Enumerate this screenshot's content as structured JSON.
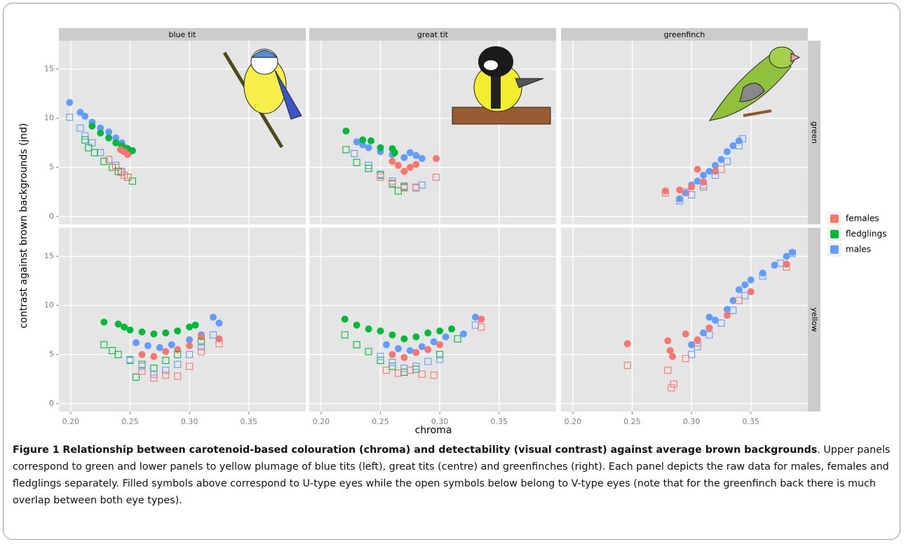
{
  "chart_data": {
    "type": "scatter",
    "xlabel": "chroma",
    "ylabel": "contrast against brown backgrounds (jnd)",
    "columns": [
      "blue tit",
      "great tit",
      "greenfinch"
    ],
    "rows": [
      "green",
      "yellow"
    ],
    "xlim": [
      0.19,
      0.398
    ],
    "xticks": [
      {
        "value": 0.2,
        "label": "0.20"
      },
      {
        "value": 0.25,
        "label": "0.25"
      },
      {
        "value": 0.3,
        "label": "0.30"
      },
      {
        "value": 0.35,
        "label": "0.35"
      }
    ],
    "ylim": [
      -0.8,
      17.9
    ],
    "yticks": [
      0,
      5,
      10,
      15
    ],
    "grid": true,
    "legend_position": "right",
    "legend": [
      {
        "name": "females",
        "color": "#f8766d"
      },
      {
        "name": "fledglings",
        "color": "#00ba38"
      },
      {
        "name": "males",
        "color": "#619cff"
      }
    ],
    "panels": [
      {
        "column": 0,
        "row": 0,
        "series": [
          {
            "group": 2,
            "filled": true,
            "x": [
              0.199,
              0.208,
              0.212,
              0.218,
              0.225,
              0.232,
              0.238,
              0.243,
              0.246,
              0.25
            ],
            "y": [
              11.6,
              10.6,
              10.2,
              9.6,
              9.0,
              8.6,
              8.0,
              7.5,
              7.0,
              6.6
            ]
          },
          {
            "group": 1,
            "filled": true,
            "x": [
              0.218,
              0.225,
              0.232,
              0.238,
              0.243,
              0.248,
              0.252
            ],
            "y": [
              9.2,
              8.5,
              8.0,
              7.5,
              7.2,
              6.9,
              6.7
            ]
          },
          {
            "group": 0,
            "filled": true,
            "x": [
              0.245,
              0.248,
              0.242
            ],
            "y": [
              6.6,
              6.3,
              6.8
            ]
          },
          {
            "group": 2,
            "filled": false,
            "x": [
              0.199,
              0.208,
              0.212,
              0.218,
              0.225,
              0.232,
              0.238,
              0.243
            ],
            "y": [
              10.1,
              9.0,
              8.2,
              7.5,
              6.5,
              5.8,
              5.2,
              4.6
            ]
          },
          {
            "group": 1,
            "filled": false,
            "x": [
              0.212,
              0.215,
              0.22,
              0.228,
              0.235,
              0.24,
              0.248,
              0.252
            ],
            "y": [
              7.8,
              7.0,
              6.5,
              5.6,
              5.0,
              4.6,
              4.0,
              3.6
            ]
          },
          {
            "group": 0,
            "filled": false,
            "x": [
              0.232,
              0.238,
              0.242,
              0.245,
              0.248
            ],
            "y": [
              5.8,
              5.0,
              4.5,
              4.2,
              4.0
            ]
          }
        ]
      },
      {
        "column": 1,
        "row": 0,
        "series": [
          {
            "group": 2,
            "filled": true,
            "x": [
              0.23,
              0.235,
              0.24,
              0.25,
              0.26,
              0.27,
              0.275,
              0.28,
              0.285
            ],
            "y": [
              7.6,
              7.3,
              7.0,
              6.6,
              6.3,
              6.0,
              6.5,
              6.2,
              5.9
            ]
          },
          {
            "group": 1,
            "filled": true,
            "x": [
              0.221,
              0.235,
              0.242,
              0.25,
              0.262,
              0.26
            ],
            "y": [
              8.7,
              7.8,
              7.7,
              7.0,
              6.5,
              6.9
            ]
          },
          {
            "group": 0,
            "filled": true,
            "x": [
              0.26,
              0.265,
              0.27,
              0.275,
              0.297,
              0.28
            ],
            "y": [
              5.6,
              5.2,
              4.6,
              5.0,
              5.9,
              5.3
            ]
          },
          {
            "group": 2,
            "filled": false,
            "x": [
              0.228,
              0.24,
              0.25,
              0.26,
              0.27,
              0.28,
              0.285
            ],
            "y": [
              6.4,
              5.2,
              4.3,
              3.6,
              3.1,
              2.9,
              3.2
            ]
          },
          {
            "group": 1,
            "filled": false,
            "x": [
              0.221,
              0.23,
              0.24,
              0.25,
              0.26,
              0.265,
              0.27
            ],
            "y": [
              6.8,
              5.5,
              4.9,
              4.2,
              3.3,
              2.6,
              3.0
            ]
          },
          {
            "group": 0,
            "filled": false,
            "x": [
              0.25,
              0.26,
              0.27,
              0.28,
              0.297
            ],
            "y": [
              4.0,
              3.4,
              2.9,
              3.0,
              4.0
            ]
          }
        ]
      },
      {
        "column": 2,
        "row": 0,
        "series": [
          {
            "group": 2,
            "filled": true,
            "x": [
              0.29,
              0.295,
              0.3,
              0.305,
              0.31,
              0.315,
              0.32,
              0.325,
              0.33,
              0.335,
              0.34
            ],
            "y": [
              1.8,
              2.4,
              3.2,
              3.6,
              4.2,
              4.6,
              5.2,
              5.8,
              6.6,
              7.2,
              7.7
            ]
          },
          {
            "group": 0,
            "filled": true,
            "x": [
              0.278,
              0.29,
              0.3,
              0.305,
              0.31,
              0.32
            ],
            "y": [
              2.6,
              2.7,
              3.0,
              4.8,
              3.5,
              4.6
            ]
          },
          {
            "group": 2,
            "filled": false,
            "x": [
              0.29,
              0.3,
              0.31,
              0.32,
              0.33,
              0.34,
              0.343
            ],
            "y": [
              1.6,
              2.2,
              3.0,
              4.2,
              5.6,
              7.2,
              7.9
            ]
          },
          {
            "group": 0,
            "filled": false,
            "x": [
              0.278,
              0.295,
              0.31,
              0.325
            ],
            "y": [
              2.4,
              2.5,
              3.2,
              4.8
            ]
          }
        ]
      },
      {
        "column": 0,
        "row": 1,
        "series": [
          {
            "group": 1,
            "filled": true,
            "x": [
              0.228,
              0.24,
              0.245,
              0.25,
              0.26,
              0.27,
              0.28,
              0.29,
              0.3,
              0.305
            ],
            "y": [
              8.3,
              8.1,
              7.8,
              7.5,
              7.3,
              7.1,
              7.2,
              7.4,
              7.8,
              8.0
            ]
          },
          {
            "group": 2,
            "filled": true,
            "x": [
              0.255,
              0.265,
              0.275,
              0.285,
              0.3,
              0.31,
              0.32,
              0.325
            ],
            "y": [
              6.2,
              5.9,
              5.7,
              6.0,
              6.5,
              7.0,
              8.8,
              8.2
            ]
          },
          {
            "group": 0,
            "filled": true,
            "x": [
              0.26,
              0.27,
              0.28,
              0.29,
              0.3,
              0.31,
              0.325
            ],
            "y": [
              5.0,
              4.8,
              5.3,
              5.5,
              5.9,
              6.8,
              6.6
            ]
          },
          {
            "group": 1,
            "filled": false,
            "x": [
              0.228,
              0.235,
              0.24,
              0.25,
              0.255,
              0.26,
              0.27,
              0.28,
              0.29,
              0.31
            ],
            "y": [
              6.0,
              5.4,
              5.0,
              4.4,
              2.7,
              4.0,
              3.6,
              4.4,
              5.0,
              6.3
            ]
          },
          {
            "group": 2,
            "filled": false,
            "x": [
              0.25,
              0.26,
              0.27,
              0.28,
              0.29,
              0.3,
              0.31,
              0.32
            ],
            "y": [
              4.5,
              3.8,
              3.0,
              3.4,
              4.0,
              5.0,
              5.8,
              7.0
            ]
          },
          {
            "group": 0,
            "filled": false,
            "x": [
              0.26,
              0.27,
              0.28,
              0.29,
              0.3,
              0.31,
              0.325
            ],
            "y": [
              3.3,
              2.6,
              2.9,
              2.8,
              3.8,
              5.3,
              6.1
            ]
          }
        ]
      },
      {
        "column": 1,
        "row": 1,
        "series": [
          {
            "group": 1,
            "filled": true,
            "x": [
              0.22,
              0.23,
              0.24,
              0.25,
              0.26,
              0.27,
              0.28,
              0.29,
              0.3,
              0.31
            ],
            "y": [
              8.6,
              8.0,
              7.6,
              7.4,
              7.0,
              6.6,
              6.8,
              7.2,
              7.4,
              7.6
            ]
          },
          {
            "group": 2,
            "filled": true,
            "x": [
              0.255,
              0.265,
              0.275,
              0.285,
              0.295,
              0.305,
              0.32,
              0.33
            ],
            "y": [
              6.0,
              5.6,
              5.4,
              5.8,
              6.3,
              6.8,
              7.1,
              8.8
            ]
          },
          {
            "group": 0,
            "filled": true,
            "x": [
              0.26,
              0.27,
              0.28,
              0.29,
              0.3,
              0.335
            ],
            "y": [
              5.0,
              4.7,
              5.2,
              5.5,
              6.0,
              8.6
            ]
          },
          {
            "group": 1,
            "filled": false,
            "x": [
              0.22,
              0.23,
              0.24,
              0.25,
              0.26,
              0.27,
              0.28,
              0.3,
              0.315
            ],
            "y": [
              7.0,
              6.0,
              5.3,
              4.4,
              3.8,
              3.2,
              3.5,
              5.0,
              6.6
            ]
          },
          {
            "group": 2,
            "filled": false,
            "x": [
              0.25,
              0.26,
              0.27,
              0.28,
              0.29,
              0.3,
              0.33
            ],
            "y": [
              4.8,
              4.2,
              3.6,
              3.8,
              4.3,
              4.5,
              8.0
            ]
          },
          {
            "group": 0,
            "filled": false,
            "x": [
              0.255,
              0.265,
              0.275,
              0.285,
              0.295,
              0.335
            ],
            "y": [
              3.4,
              3.1,
              3.4,
              3.0,
              2.9,
              7.8
            ]
          }
        ]
      },
      {
        "column": 2,
        "row": 1,
        "series": [
          {
            "group": 2,
            "filled": true,
            "x": [
              0.3,
              0.31,
              0.315,
              0.32,
              0.33,
              0.335,
              0.34,
              0.345,
              0.35,
              0.36,
              0.37,
              0.38,
              0.385
            ],
            "y": [
              6.0,
              7.2,
              8.8,
              8.5,
              9.6,
              10.5,
              11.6,
              12.1,
              12.6,
              13.3,
              14.1,
              15.0,
              15.4
            ]
          },
          {
            "group": 0,
            "filled": true,
            "x": [
              0.246,
              0.28,
              0.282,
              0.284,
              0.295,
              0.305,
              0.315,
              0.33,
              0.35,
              0.38
            ],
            "y": [
              6.1,
              6.4,
              5.4,
              4.8,
              7.1,
              6.5,
              7.7,
              9.0,
              11.4,
              14.2
            ]
          },
          {
            "group": 2,
            "filled": false,
            "x": [
              0.3,
              0.305,
              0.315,
              0.325,
              0.335,
              0.345,
              0.36,
              0.375,
              0.385
            ],
            "y": [
              5.0,
              5.8,
              7.0,
              8.2,
              9.5,
              11.0,
              13.0,
              14.3,
              15.3
            ]
          },
          {
            "group": 0,
            "filled": false,
            "x": [
              0.246,
              0.28,
              0.283,
              0.285,
              0.295,
              0.305,
              0.34,
              0.38
            ],
            "y": [
              3.9,
              3.4,
              1.6,
              2.0,
              4.6,
              6.2,
              10.5,
              13.9
            ]
          }
        ]
      }
    ],
    "caption": {
      "label": "Figure 1",
      "title": "Relationship between carotenoid-based colouration (chroma) and detectability (visual contrast) against average brown backgrounds",
      "text": ". Upper panels correspond to green and lower panels to yellow plumage of blue tits (left), great tits (centre) and greenfinches (right). Each panel depicts the raw data for males, females and fledglings separately. Filled symbols above correspond to U-type eyes while the open symbols below belong to V-type eyes (note that for the greenfinch back there is much overlap between both eye types)."
    }
  }
}
